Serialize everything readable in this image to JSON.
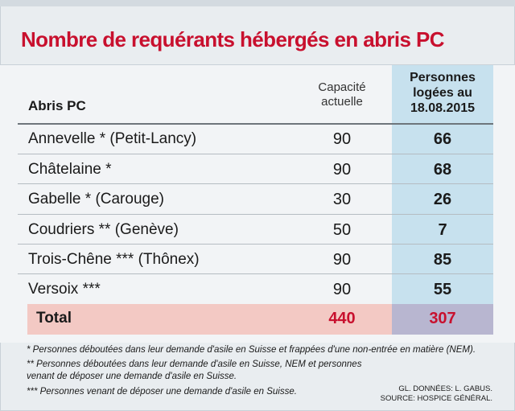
{
  "chart_data": {
    "type": "table",
    "title": "Nombre de requérants hébergés en abris  PC",
    "columns": [
      "Abris PC",
      "Capacité actuelle",
      "Personnes logées au 18.08.2015"
    ],
    "header": {
      "abris": "Abris PC",
      "capacite_line1": "Capacité",
      "capacite_line2": "actuelle",
      "personnes_line1": "Personnes",
      "personnes_line2": "logées au",
      "personnes_line3": "18.08.2015"
    },
    "rows": [
      {
        "name": "Annevelle * (Petit-Lancy)",
        "capacite": "90",
        "personnes": "66"
      },
      {
        "name": "Châtelaine *",
        "capacite": "90",
        "personnes": "68"
      },
      {
        "name": "Gabelle * (Carouge)",
        "capacite": "30",
        "personnes": "26"
      },
      {
        "name": "Coudriers ** (Genève)",
        "capacite": "50",
        "personnes": "7"
      },
      {
        "name": "Trois-Chêne *** (Thônex)",
        "capacite": "90",
        "personnes": "85"
      },
      {
        "name": "Versoix ***",
        "capacite": "90",
        "personnes": "55"
      }
    ],
    "total": {
      "label": "Total",
      "capacite": "440",
      "personnes": "307"
    }
  },
  "notes": {
    "note1": "* Personnes déboutées dans leur demande d'asile en Suisse et frappées d'une non-entrée en matière (NEM).",
    "note2_line1": "** Personnes déboutées dans leur demande d'asile en Suisse, NEM et personnes",
    "note2_line2": "venant de déposer une demande d'asile en Suisse.",
    "note3": "***  Personnes venant de déposer une demande d'asile en Suisse."
  },
  "credits": {
    "line1": "GL. DONNÉES: L. GABUS.",
    "line2": "SOURCE: HOSPICE GÉNÉRAL."
  },
  "colors": {
    "title": "#c8102e",
    "highlight_column": "#c7e1ee",
    "total_left": "#f3c9c4",
    "total_right": "#b8b6d0",
    "total_values": "#c8102e"
  }
}
